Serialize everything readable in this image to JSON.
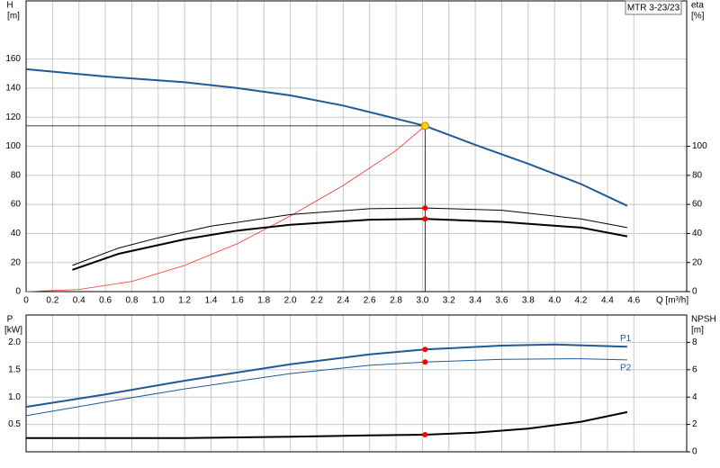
{
  "chart_data": [
    {
      "type": "line",
      "label_box": "MTR 3-23/23",
      "y_label": "H",
      "y_unit": "[m]",
      "y2_label": "eta",
      "y2_unit": "[%]",
      "x_label": "Q [m³/h]",
      "xlim": [
        0,
        5
      ],
      "xticks": [
        0,
        0.2,
        0.4,
        0.6,
        0.8,
        {
          "value": 1,
          "label": "1.0"
        },
        1.2,
        1.4,
        1.6,
        1.8,
        {
          "value": 2,
          "label": "2.0"
        },
        2.2,
        2.4,
        2.6,
        2.8,
        {
          "value": 3,
          "label": "3.0"
        },
        3.2,
        3.4,
        3.6,
        3.8,
        {
          "value": 4,
          "label": "4.0"
        },
        4.2,
        4.4,
        4.6
      ],
      "ylim": [
        0,
        200
      ],
      "yticks": [
        0,
        20,
        40,
        60,
        80,
        100,
        120,
        140,
        160
      ],
      "y2lim": [
        0,
        200
      ],
      "y2ticks": [
        0,
        20,
        40,
        60,
        80,
        100
      ],
      "grid": true,
      "series": [
        {
          "color": "#1f5a96",
          "line_width": 2,
          "x": [
            0,
            0.6,
            1.2,
            1.6,
            2.0,
            2.4,
            2.8,
            3.02,
            3.4,
            3.8,
            4.2,
            4.55
          ],
          "values": [
            153,
            148,
            144,
            140,
            135,
            128,
            119,
            114,
            101,
            88,
            74,
            59
          ]
        },
        {
          "color": "#ff3030",
          "line_width": 0.8,
          "x": [
            0,
            0.4,
            0.8,
            1.2,
            1.6,
            2.0,
            2.4,
            2.8,
            3.02
          ],
          "values": [
            0,
            1.5,
            7,
            18,
            33,
            52,
            73,
            97,
            114
          ]
        },
        {
          "color": "#000000",
          "line_width": 1,
          "axis": "y2",
          "x": [
            0.35,
            0.7,
            1.0,
            1.4,
            2.0,
            2.6,
            3.02,
            3.6,
            4.2,
            4.55
          ],
          "values": [
            18,
            30,
            37,
            45,
            53,
            57,
            57.5,
            56,
            50,
            44
          ]
        },
        {
          "color": "#000000",
          "line_width": 2,
          "axis": "y2",
          "x": [
            0.35,
            0.7,
            1.2,
            1.6,
            2.0,
            2.6,
            3.02,
            3.6,
            4.2,
            4.55
          ],
          "values": [
            15,
            26,
            36,
            42,
            46,
            49.5,
            50,
            48,
            44,
            38
          ]
        }
      ],
      "duty_point": {
        "x": 3.02,
        "y": 114,
        "color": "#ffd700"
      },
      "markers": [
        {
          "x": 3.02,
          "y": 57.5,
          "axis": "y2",
          "color": "#ff0000"
        },
        {
          "x": 3.02,
          "y": 50,
          "axis": "y2",
          "color": "#ff0000"
        }
      ]
    },
    {
      "type": "line",
      "y_label": "P",
      "y_unit": "[kW]",
      "y2_label": "NPSH",
      "y2_unit": "[m]",
      "xlim": [
        0,
        5
      ],
      "ylim": [
        0,
        2.5
      ],
      "yticks": [
        0.5,
        {
          "value": 1,
          "label": "1.0"
        },
        1.5,
        {
          "value": 2,
          "label": "2.0"
        }
      ],
      "y2lim": [
        0,
        10
      ],
      "y2ticks": [
        0,
        2,
        4,
        6,
        8
      ],
      "grid": true,
      "series": [
        {
          "name": "P1",
          "color": "#1f5a96",
          "line_width": 2,
          "x": [
            0,
            0.6,
            1.2,
            2.0,
            2.6,
            3.02,
            3.6,
            4.0,
            4.55
          ],
          "values": [
            0.82,
            1.05,
            1.3,
            1.6,
            1.78,
            1.87,
            1.94,
            1.96,
            1.92
          ]
        },
        {
          "name": "P2",
          "color": "#1f5a96",
          "line_width": 1,
          "x": [
            0,
            0.6,
            1.2,
            2.0,
            2.6,
            3.02,
            3.6,
            4.2,
            4.55
          ],
          "values": [
            0.66,
            0.91,
            1.15,
            1.43,
            1.58,
            1.64,
            1.69,
            1.7,
            1.68
          ]
        },
        {
          "color": "#000000",
          "line_width": 2,
          "axis": "y2",
          "x": [
            0,
            1.2,
            2.0,
            2.6,
            3.02,
            3.4,
            3.8,
            4.2,
            4.55
          ],
          "values": [
            1.0,
            1.0,
            1.1,
            1.2,
            1.25,
            1.4,
            1.7,
            2.2,
            2.9
          ]
        }
      ],
      "markers": [
        {
          "x": 3.02,
          "y": 1.87,
          "color": "#ff0000"
        },
        {
          "x": 3.02,
          "y": 1.64,
          "color": "#ff0000"
        },
        {
          "x": 3.02,
          "y": 1.25,
          "axis": "y2",
          "color": "#ff0000"
        }
      ]
    }
  ]
}
